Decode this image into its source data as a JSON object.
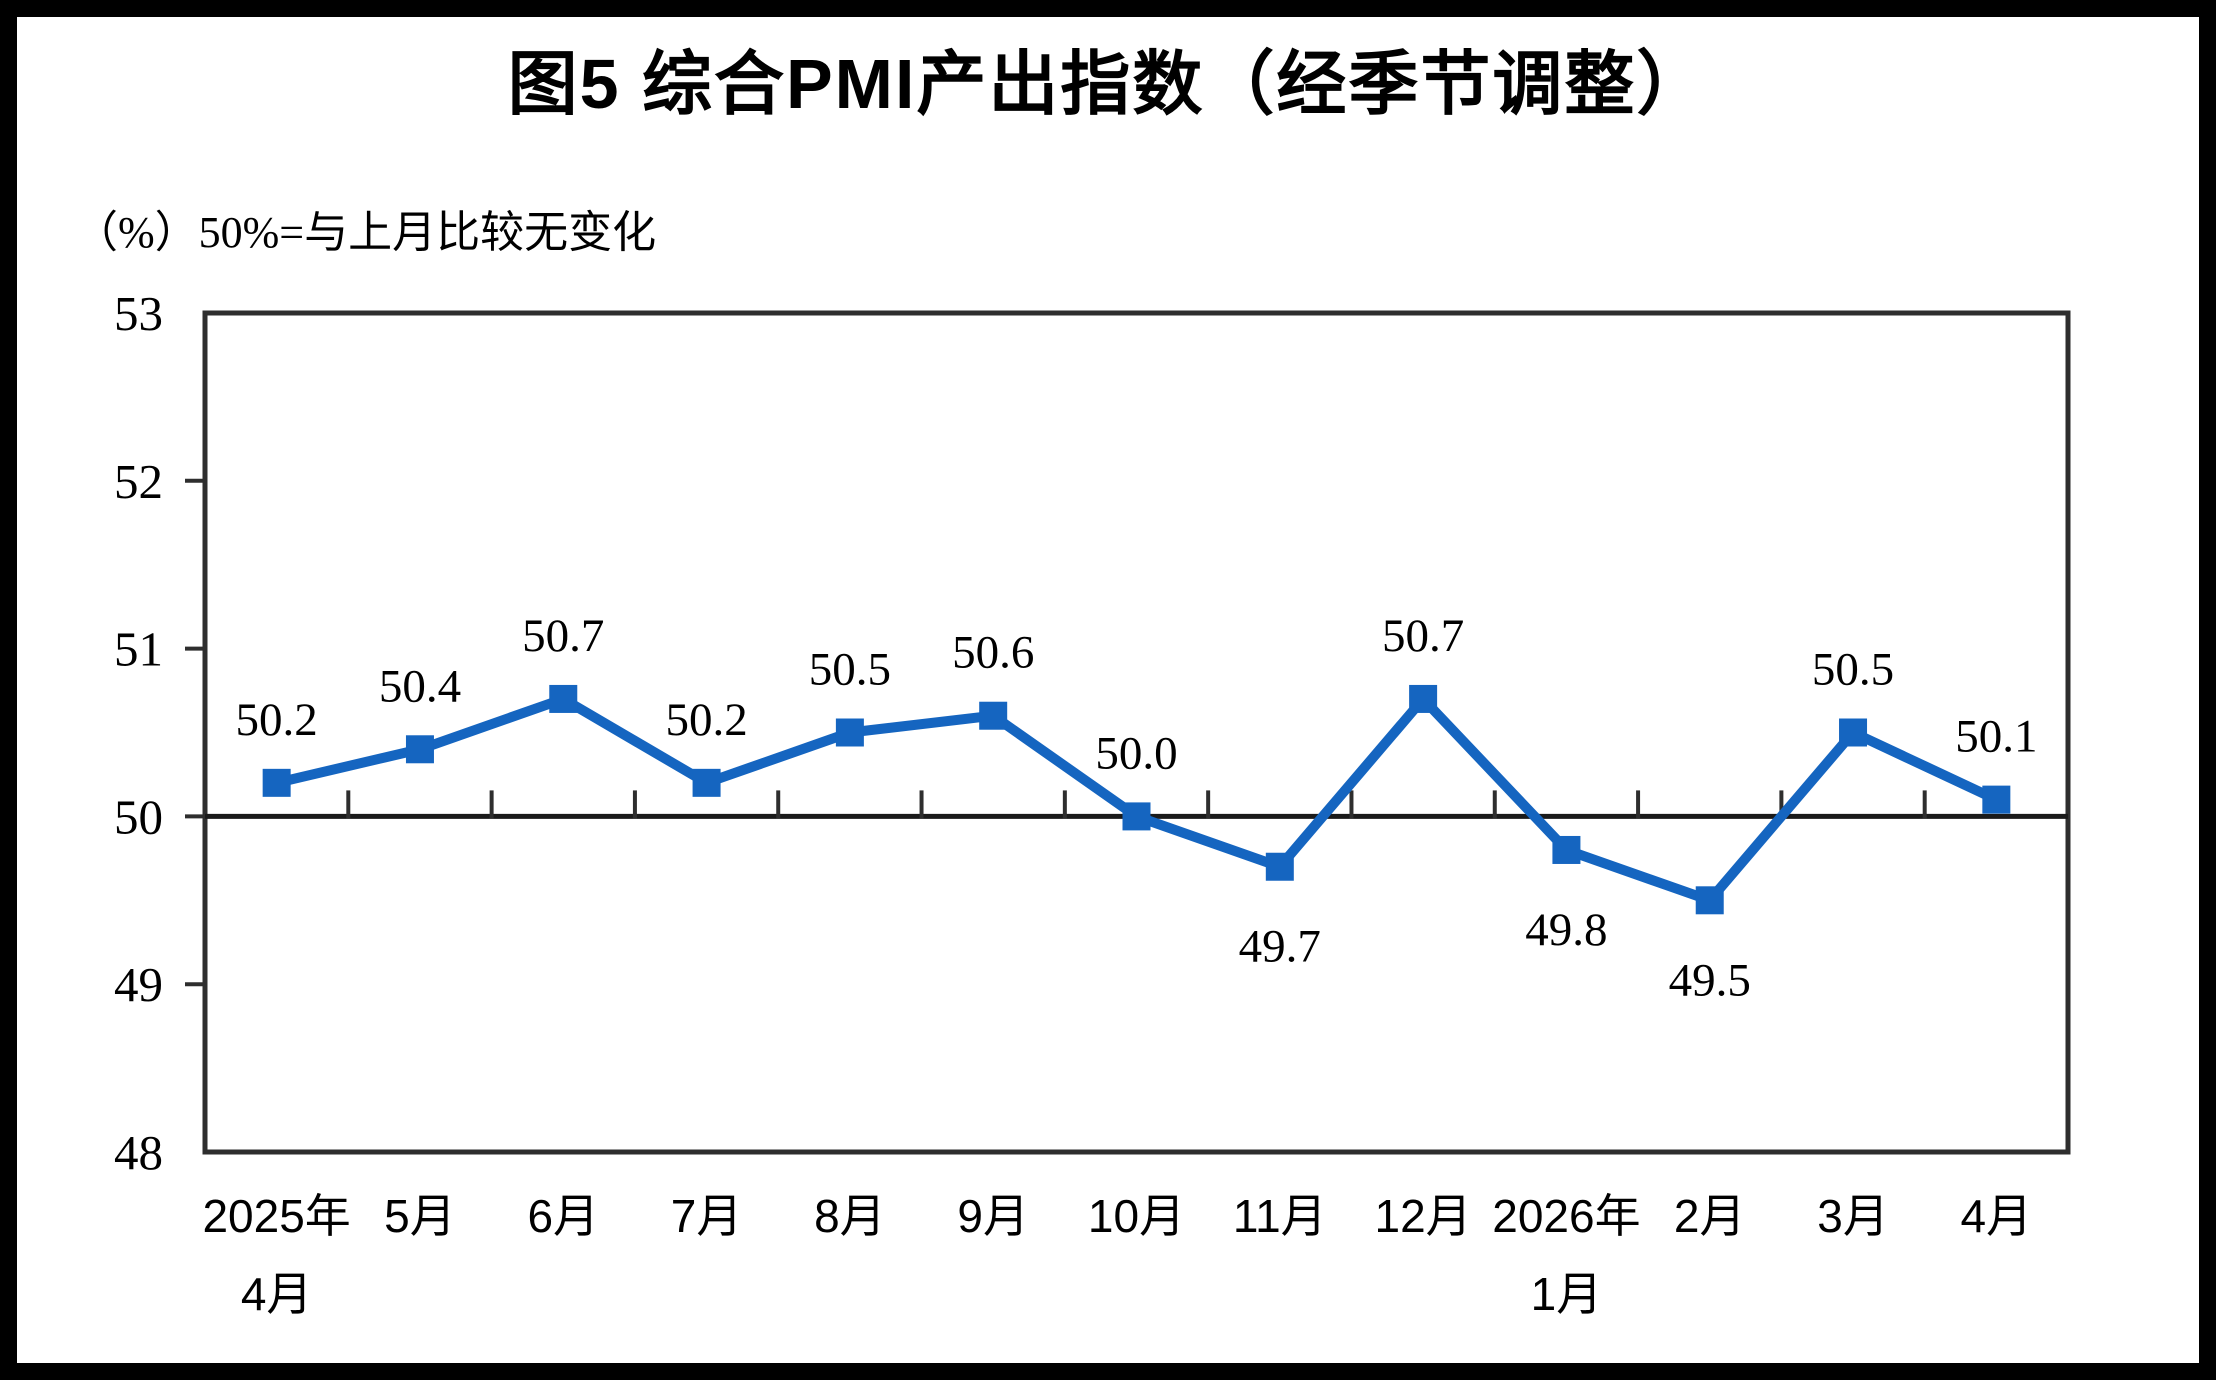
{
  "title": "图5 综合PMI产出指数（经季节调整）",
  "unit_note": "（%）50%=与上月比较无变化",
  "colors": {
    "line": "#1565C0",
    "axis": "#2E2E2E",
    "baseline": "#1A1A1A",
    "text": "#000000",
    "background": "#FFFFFF",
    "border": "#000000"
  },
  "chart_data": {
    "type": "line",
    "title": "图5 综合PMI产出指数（经季节调整）",
    "unit_label": "（%）50%=与上月比较无变化",
    "categories": [
      "2025年\n4月",
      "5月",
      "6月",
      "7月",
      "8月",
      "9月",
      "10月",
      "11月",
      "12月",
      "2026年\n1月",
      "2月",
      "3月",
      "4月"
    ],
    "series": [
      {
        "name": "综合PMI产出指数",
        "values": [
          50.2,
          50.4,
          50.7,
          50.2,
          50.5,
          50.6,
          50.0,
          49.7,
          50.7,
          49.8,
          49.5,
          50.5,
          50.1
        ]
      }
    ],
    "ylim": [
      48,
      53
    ],
    "yticks": [
      48,
      49,
      50,
      51,
      52,
      53
    ],
    "baseline": 50,
    "baseline_meaning": "50%=与上月比较无变化",
    "grid": false,
    "legend_position": "none",
    "marker": "square",
    "value_labels": true
  }
}
